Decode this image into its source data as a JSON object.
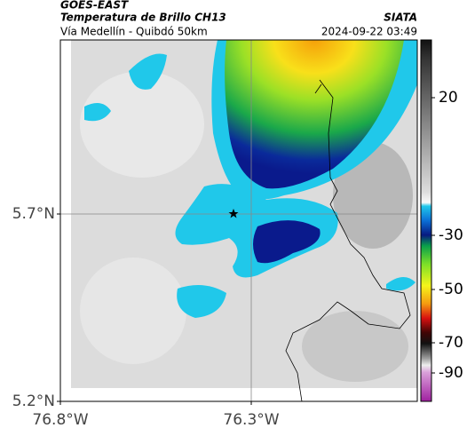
{
  "header": {
    "source": "GOES-EAST",
    "title": "Temperatura de Brillo CH13",
    "subtitle": "Vía Medellín - Quibdó 50km",
    "agency": "SIATA",
    "timestamp": "2024-09-22 03:49"
  },
  "map": {
    "lat_ticks": [
      {
        "value": 5.7,
        "label": "5.7°N"
      },
      {
        "value": 5.2,
        "label": "5.2°N"
      }
    ],
    "lon_ticks": [
      {
        "value": -76.8,
        "label": "76.8°W"
      },
      {
        "value": -76.3,
        "label": "76.3°W"
      }
    ],
    "colorbar_ticks": [
      20,
      -30,
      -50,
      -70,
      -90
    ]
  }
}
